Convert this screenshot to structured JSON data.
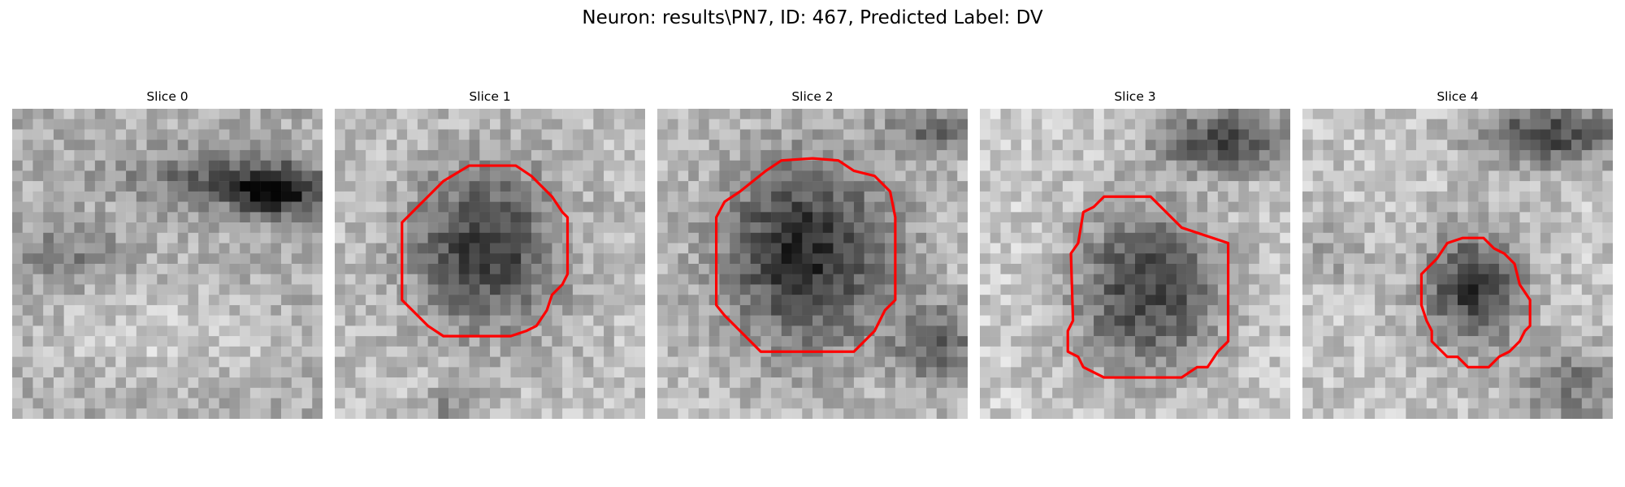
{
  "figure": {
    "title": "Neuron: results\\PN7, ID: 467, Predicted Label: DV"
  },
  "colors": {
    "contour": "#ff0000",
    "colormap": "gray"
  },
  "slices": [
    {
      "title": "Slice 0",
      "has_contour": false
    },
    {
      "title": "Slice 1",
      "has_contour": true
    },
    {
      "title": "Slice 2",
      "has_contour": true
    },
    {
      "title": "Slice 3",
      "has_contour": true
    },
    {
      "title": "Slice 4",
      "has_contour": true
    }
  ]
}
